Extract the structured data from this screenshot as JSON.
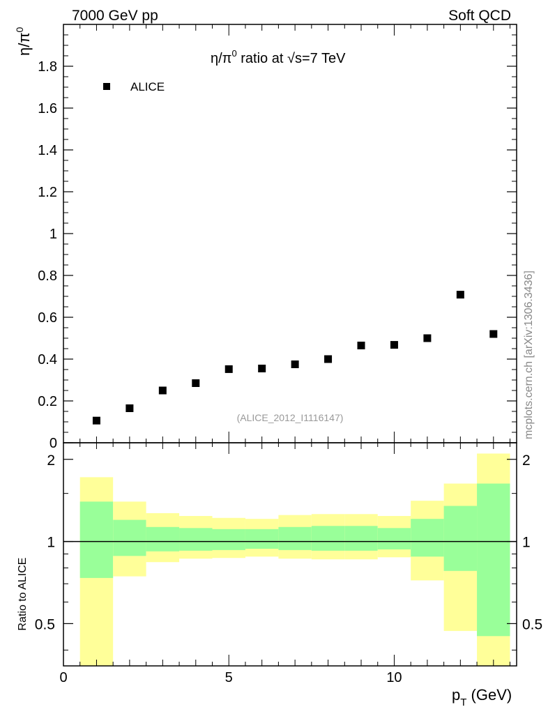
{
  "header": {
    "left": "7000 GeV pp",
    "right": "Soft QCD"
  },
  "watermark": "mcplots.cern.ch [arXiv:1306.3436]",
  "chart_data": [
    {
      "type": "scatter",
      "title_main": "η/π",
      "title_sup": "0",
      "title_rest": " ratio at ",
      "title_sqrt": "√s",
      "title_energy": "=7 TeV",
      "ylabel_main": "η/π",
      "ylabel_sup": "0",
      "ylim": [
        0,
        2
      ],
      "xlim": [
        0,
        13.7
      ],
      "y_ticks": [
        "0",
        "0.2",
        "0.4",
        "0.6",
        "0.8",
        "1",
        "1.2",
        "1.4",
        "1.6",
        "1.8"
      ],
      "x_ticks": [
        "0",
        "5",
        "10"
      ],
      "legend": {
        "label": "ALICE",
        "position": "top-left"
      },
      "annotation": "(ALICE_2012_I1116147)",
      "series": [
        {
          "name": "ALICE",
          "x": [
            1,
            2,
            3,
            4,
            5,
            6,
            7,
            8,
            9,
            10,
            11,
            12,
            13
          ],
          "y": [
            0.106,
            0.165,
            0.25,
            0.285,
            0.352,
            0.355,
            0.375,
            0.4,
            0.465,
            0.468,
            0.5,
            0.708,
            0.52
          ]
        }
      ]
    },
    {
      "type": "area",
      "ylabel": "Ratio to ALICE",
      "xlabel_main": "p",
      "xlabel_sub": "T",
      "xlabel_unit": " (GeV)",
      "ylim_log": [
        0.35,
        2.3
      ],
      "y_ticks": [
        "0.5",
        "1",
        "2"
      ],
      "x_ticks": [
        "0",
        "5",
        "10"
      ],
      "colors": {
        "yellow": "#ffff99",
        "green": "#99ff99"
      },
      "bins": [
        {
          "lo": 0.5,
          "hi": 1.5,
          "green": [
            0.735,
            1.4
          ],
          "yellow": [
            0.0,
            1.72
          ]
        },
        {
          "lo": 1.5,
          "hi": 2.5,
          "green": [
            0.885,
            1.2
          ],
          "yellow": [
            0.745,
            1.4
          ]
        },
        {
          "lo": 2.5,
          "hi": 3.5,
          "green": [
            0.92,
            1.13
          ],
          "yellow": [
            0.84,
            1.27
          ]
        },
        {
          "lo": 3.5,
          "hi": 4.5,
          "green": [
            0.925,
            1.12
          ],
          "yellow": [
            0.865,
            1.24
          ]
        },
        {
          "lo": 4.5,
          "hi": 5.5,
          "green": [
            0.93,
            1.11
          ],
          "yellow": [
            0.87,
            1.22
          ]
        },
        {
          "lo": 5.5,
          "hi": 6.5,
          "green": [
            0.94,
            1.11
          ],
          "yellow": [
            0.88,
            1.21
          ]
        },
        {
          "lo": 6.5,
          "hi": 7.5,
          "green": [
            0.93,
            1.13
          ],
          "yellow": [
            0.865,
            1.25
          ]
        },
        {
          "lo": 7.5,
          "hi": 8.5,
          "green": [
            0.925,
            1.14
          ],
          "yellow": [
            0.86,
            1.26
          ]
        },
        {
          "lo": 8.5,
          "hi": 9.5,
          "green": [
            0.925,
            1.14
          ],
          "yellow": [
            0.86,
            1.26
          ]
        },
        {
          "lo": 9.5,
          "hi": 10.5,
          "green": [
            0.935,
            1.12
          ],
          "yellow": [
            0.875,
            1.24
          ]
        },
        {
          "lo": 10.5,
          "hi": 11.5,
          "green": [
            0.88,
            1.21
          ],
          "yellow": [
            0.72,
            1.41
          ]
        },
        {
          "lo": 11.5,
          "hi": 12.5,
          "green": [
            0.78,
            1.35
          ],
          "yellow": [
            0.47,
            1.63
          ]
        },
        {
          "lo": 12.5,
          "hi": 13.5,
          "green": [
            0.45,
            1.63
          ],
          "yellow": [
            0.0,
            2.1
          ]
        }
      ],
      "reference_line": 1
    }
  ]
}
